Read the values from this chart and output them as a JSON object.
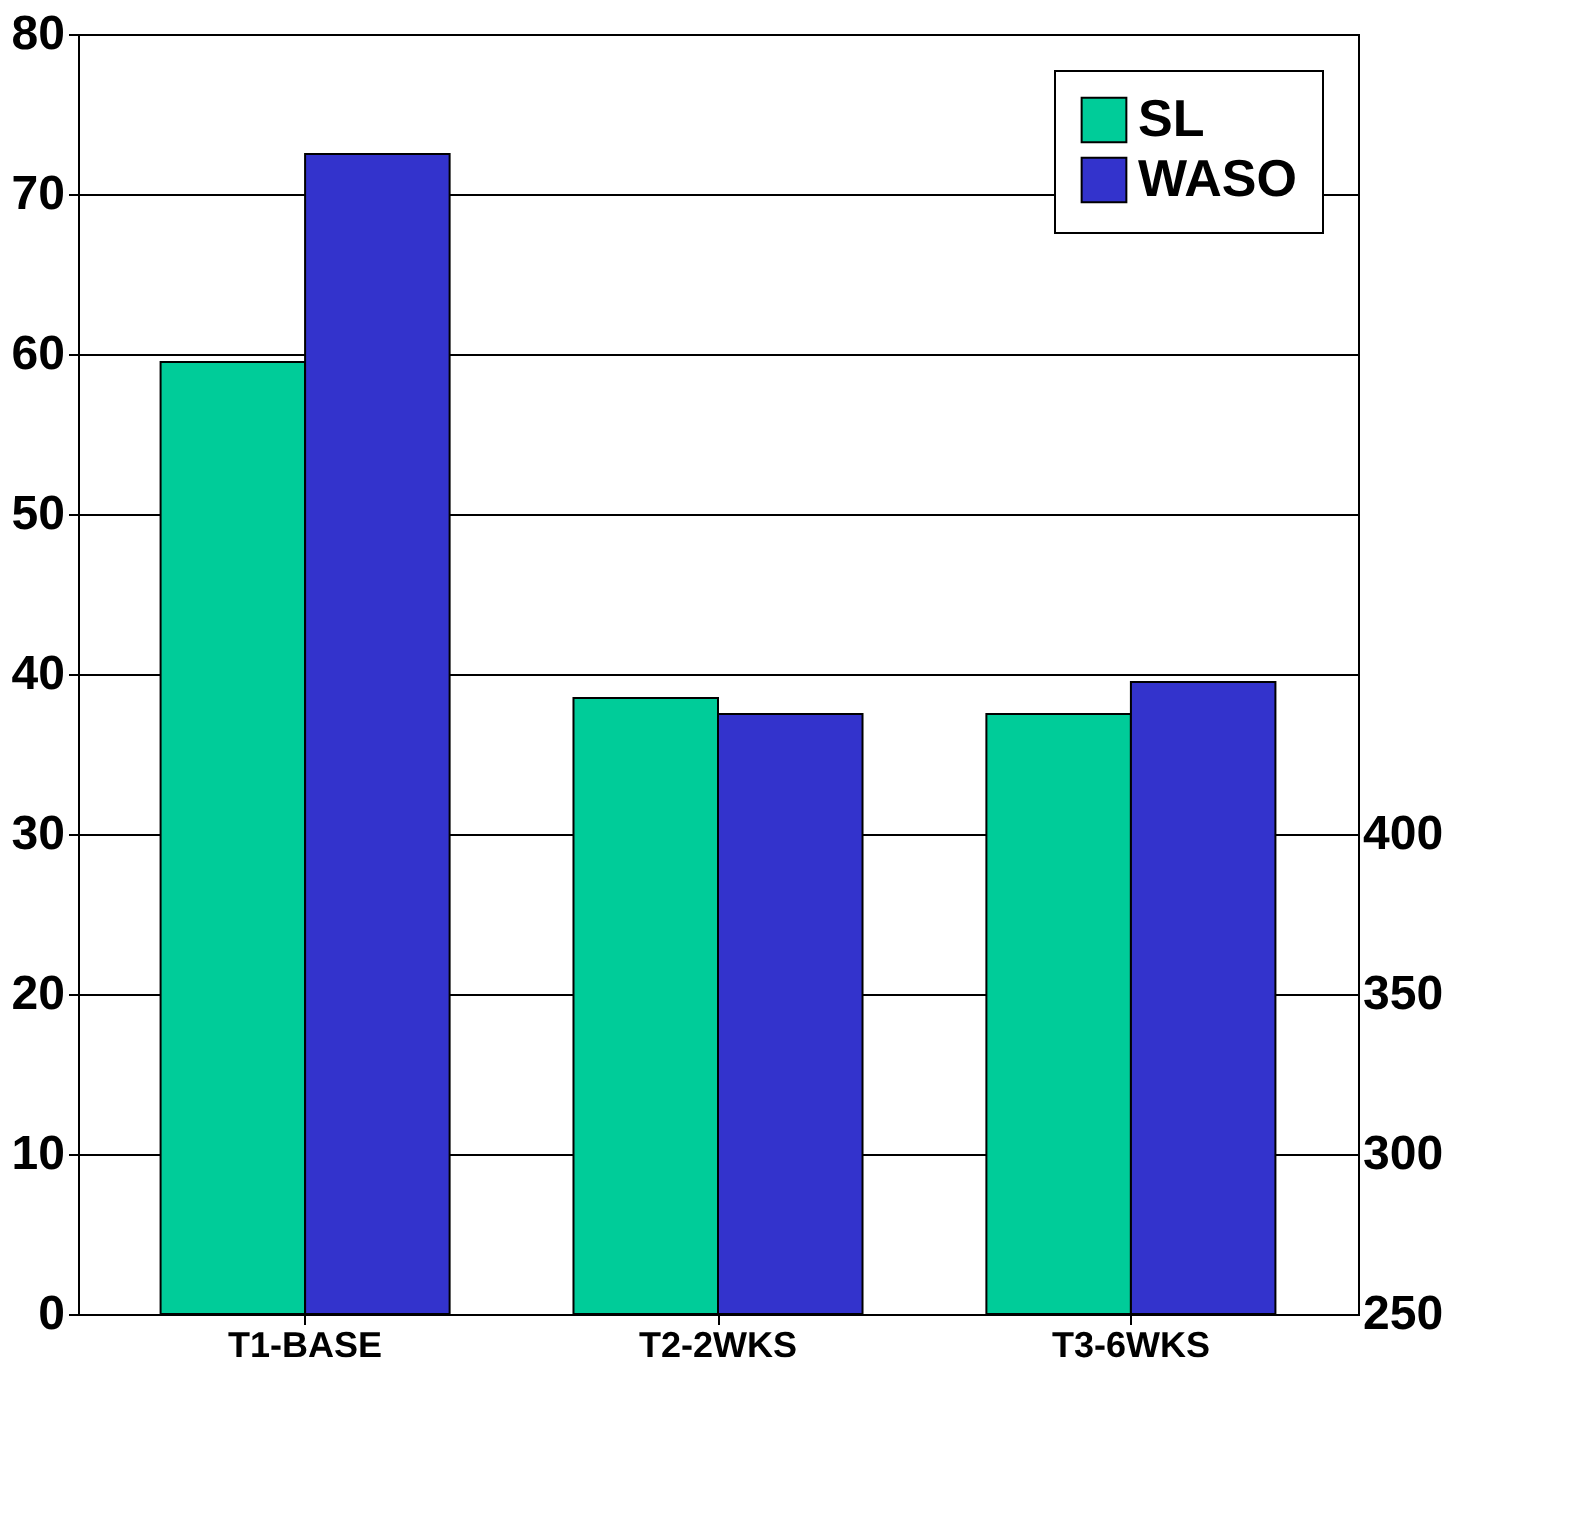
{
  "chart_data": {
    "type": "bar",
    "categories": [
      "T1-BASE",
      "T2-2WKS",
      "T3-6WKS"
    ],
    "series": [
      {
        "name": "SL",
        "color": "#00cc99",
        "values": [
          59.5,
          38.5,
          37.5
        ]
      },
      {
        "name": "WASO",
        "color": "#3333cc",
        "values": [
          72.5,
          37.5,
          39.5
        ]
      }
    ],
    "ylim": [
      0,
      80
    ],
    "yticks": [
      0,
      10,
      20,
      30,
      40,
      50,
      60,
      70,
      80
    ],
    "y2lim": [
      250,
      650
    ],
    "y2ticks": [
      250,
      300,
      350,
      400
    ],
    "grid": "y",
    "legend": "top right"
  }
}
